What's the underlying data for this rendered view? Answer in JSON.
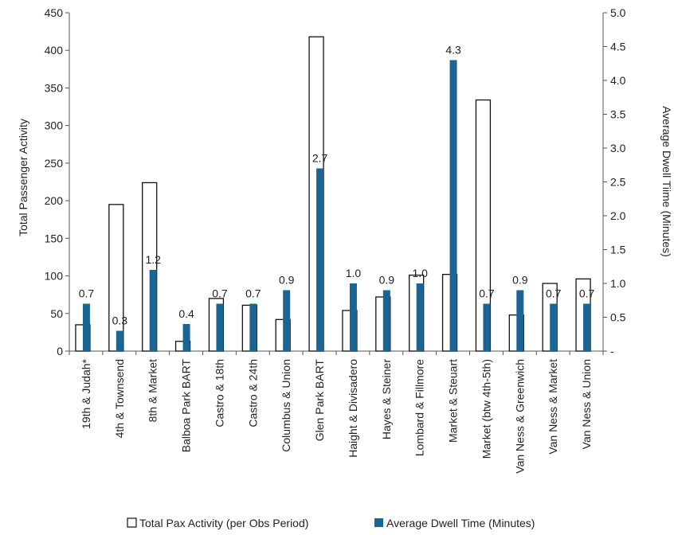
{
  "chart_data": {
    "type": "bar",
    "categories": [
      "19th & Judah*",
      "4th & Townsend",
      "8th & Market",
      "Balboa Park BART",
      "Castro & 18th",
      "Castro & 24th",
      "Columbus & Union",
      "Glen Park BART",
      "Haight & Divisadero",
      "Hayes & Steiner",
      "Lombard & Fillmore",
      "Market & Steuart",
      "Market (btw 4th-5th)",
      "Van Ness & Greenwich",
      "Van Ness & Market",
      "Van Ness & Union"
    ],
    "series": [
      {
        "name": "Total Pax Activity (per Obs Period)",
        "axis": "left",
        "color": "#ffffff",
        "values": [
          35,
          195,
          224,
          13,
          70,
          61,
          42,
          418,
          54,
          72,
          101,
          102,
          334,
          48,
          90,
          96
        ]
      },
      {
        "name": "Average Dwell Time (Minutes)",
        "axis": "right",
        "color": "#1a6594",
        "values": [
          0.7,
          0.3,
          1.2,
          0.4,
          0.7,
          0.7,
          0.9,
          2.7,
          1.0,
          0.9,
          1.0,
          4.3,
          0.7,
          0.9,
          0.7,
          0.7
        ],
        "data_labels": [
          "0.7",
          "0.3",
          "1.2",
          "0.4",
          "0.7",
          "0.7",
          "0.9",
          "2.7",
          "1.0",
          "0.9",
          "1.0",
          "4.3",
          "0.7",
          "0.9",
          "0.7",
          "0.7"
        ]
      }
    ],
    "ylabel": "Total Passenger Activity",
    "y2label": "Average Dwell Tiime (Minutes)",
    "ylim": [
      0,
      450
    ],
    "y2lim": [
      0,
      5
    ],
    "yticks": [
      "0",
      "50",
      "100",
      "150",
      "200",
      "250",
      "300",
      "350",
      "400",
      "450"
    ],
    "y2ticks": [
      "-",
      "0.5",
      "1.0",
      "1.5",
      "2.0",
      "2.5",
      "3.0",
      "3.5",
      "4.0",
      "4.5",
      "5.0"
    ],
    "grid": false,
    "legend": "bottom"
  }
}
